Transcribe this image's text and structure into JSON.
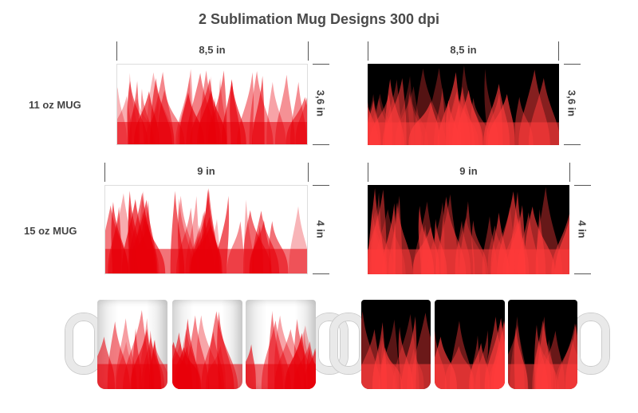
{
  "title": "2 Sublimation Mug Designs  300 dpi",
  "rows": [
    {
      "label": "11 oz MUG",
      "width": "8,5 in",
      "height": "3,6 in"
    },
    {
      "label": "15 oz MUG",
      "width": "9 in",
      "height": "4 in"
    }
  ],
  "designs": [
    {
      "name": "red flames on white",
      "background": "#ffffff",
      "flame_color": "#e8000a"
    },
    {
      "name": "red flames on black",
      "background": "#000000",
      "flame_color": "#ff3b3b"
    }
  ]
}
